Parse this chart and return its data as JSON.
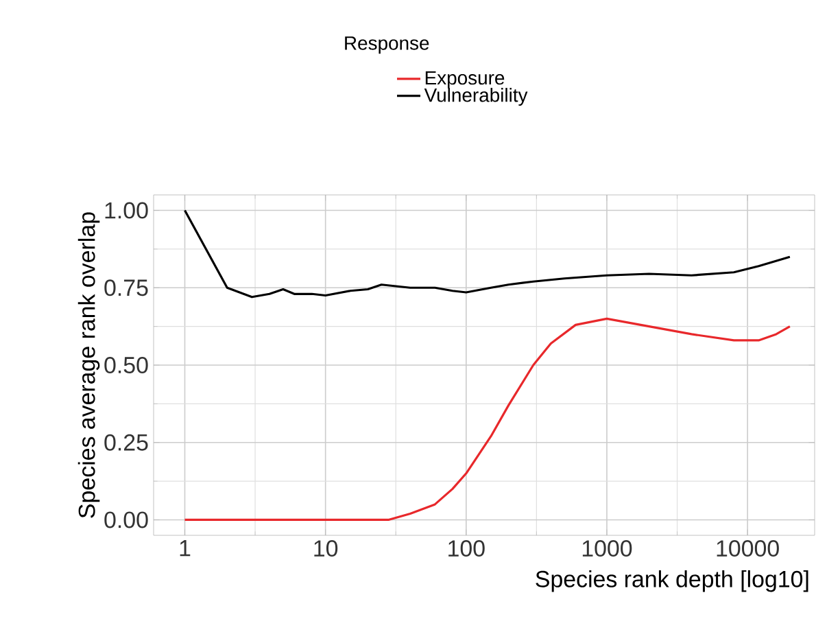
{
  "chart_data": {
    "type": "line",
    "xlabel": "Species rank depth [log10]",
    "ylabel": "Species average rank overlap",
    "legend_title": "Response",
    "log": "x",
    "grid": true,
    "legend": "top",
    "marker": "none",
    "line_style": "solid",
    "xlim": [
      0.6,
      30000
    ],
    "ylim": [
      -0.05,
      1.05
    ],
    "xticks": [
      1,
      10,
      100,
      1000,
      10000
    ],
    "yticks": [
      {
        "value": 0,
        "label": "0.00"
      },
      {
        "value": 0.25,
        "label": "0.25"
      },
      {
        "value": 0.5,
        "label": "0.50"
      },
      {
        "value": 0.75,
        "label": "0.75"
      },
      {
        "value": 1,
        "label": "1.00"
      }
    ],
    "series": [
      {
        "name": "Exposure",
        "color": "#e8282b",
        "x": [
          1,
          5,
          10,
          28,
          40,
          60,
          80,
          100,
          150,
          200,
          300,
          400,
          600,
          1000,
          2000,
          4000,
          8000,
          12000,
          16000,
          20000
        ],
        "values": [
          0,
          0,
          0,
          0,
          0.02,
          0.05,
          0.1,
          0.15,
          0.27,
          0.37,
          0.5,
          0.57,
          0.63,
          0.65,
          0.625,
          0.6,
          0.58,
          0.58,
          0.6,
          0.625
        ]
      },
      {
        "name": "Vulnerability",
        "color": "#000000",
        "x": [
          1,
          2,
          3,
          4,
          5,
          6,
          8,
          10,
          15,
          20,
          25,
          40,
          60,
          80,
          100,
          150,
          200,
          300,
          500,
          1000,
          2000,
          4000,
          8000,
          12000,
          20000
        ],
        "values": [
          1.0,
          0.75,
          0.72,
          0.73,
          0.745,
          0.73,
          0.73,
          0.725,
          0.74,
          0.745,
          0.76,
          0.75,
          0.75,
          0.74,
          0.735,
          0.75,
          0.76,
          0.77,
          0.78,
          0.79,
          0.795,
          0.79,
          0.8,
          0.82,
          0.85
        ]
      }
    ]
  }
}
